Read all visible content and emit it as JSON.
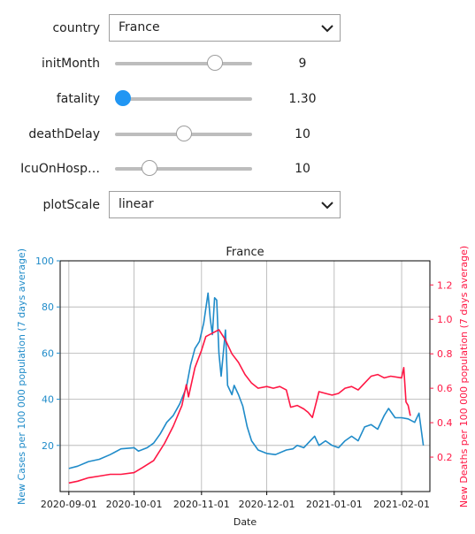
{
  "controls": {
    "country": {
      "label": "country",
      "value": "France"
    },
    "initMonth": {
      "label": "initMonth",
      "value": "9",
      "min": 1,
      "max": 12
    },
    "fatality": {
      "label": "fatality",
      "value": "1.30",
      "min": 1.2,
      "max": 3.0
    },
    "deathDelay": {
      "label": "deathDelay",
      "value": "10",
      "min": 0,
      "max": 20
    },
    "icuOnHosp": {
      "label": "IcuOnHosp…",
      "value": "10",
      "min": 0,
      "max": 40
    },
    "plotScale": {
      "label": "plotScale",
      "value": "linear"
    }
  },
  "colors": {
    "cases": "#1f8bc9",
    "deaths": "#ff1744",
    "accent": "#2196f3"
  },
  "chart_data": {
    "type": "line",
    "title": "France",
    "xlabel": "Date",
    "ylabel_left": "New Cases per 100 000 population (7 days average)",
    "ylabel_right": "New Deaths per 100 000 population (7 days average)",
    "x_ticks": [
      "2020-09-01",
      "2020-10-01",
      "2020-11-01",
      "2020-12-01",
      "2021-01-01",
      "2021-02-01"
    ],
    "y_left_ticks": [
      "20",
      "40",
      "60",
      "80",
      "100"
    ],
    "y_right_ticks": [
      "0.2",
      "0.4",
      "0.6",
      "0.8",
      "1.0",
      "1.2"
    ],
    "ylim_left": [
      0,
      100
    ],
    "ylim_right": [
      0,
      1.34
    ],
    "grid": true,
    "series": [
      {
        "axis": "left",
        "color": "#1f8bc9",
        "points": [
          [
            "2020-09-01",
            10
          ],
          [
            "2020-09-05",
            11
          ],
          [
            "2020-09-10",
            13
          ],
          [
            "2020-09-15",
            14
          ],
          [
            "2020-09-20",
            16
          ],
          [
            "2020-09-25",
            18.5
          ],
          [
            "2020-10-01",
            19
          ],
          [
            "2020-10-03",
            17.5
          ],
          [
            "2020-10-07",
            19
          ],
          [
            "2020-10-10",
            21
          ],
          [
            "2020-10-13",
            25
          ],
          [
            "2020-10-16",
            30
          ],
          [
            "2020-10-19",
            33
          ],
          [
            "2020-10-22",
            38
          ],
          [
            "2020-10-25",
            45
          ],
          [
            "2020-10-27",
            55
          ],
          [
            "2020-10-29",
            62
          ],
          [
            "2020-10-31",
            65
          ],
          [
            "2020-11-02",
            73
          ],
          [
            "2020-11-04",
            86
          ],
          [
            "2020-11-05",
            75
          ],
          [
            "2020-11-06",
            68
          ],
          [
            "2020-11-07",
            84
          ],
          [
            "2020-11-08",
            83
          ],
          [
            "2020-11-09",
            60
          ],
          [
            "2020-11-10",
            50
          ],
          [
            "2020-11-12",
            70
          ],
          [
            "2020-11-13",
            46
          ],
          [
            "2020-11-15",
            42
          ],
          [
            "2020-11-16",
            46
          ],
          [
            "2020-11-18",
            42
          ],
          [
            "2020-11-20",
            37
          ],
          [
            "2020-11-22",
            28
          ],
          [
            "2020-11-24",
            22
          ],
          [
            "2020-11-27",
            18
          ],
          [
            "2020-12-01",
            16.5
          ],
          [
            "2020-12-05",
            16
          ],
          [
            "2020-12-10",
            18
          ],
          [
            "2020-12-13",
            18.5
          ],
          [
            "2020-12-15",
            20
          ],
          [
            "2020-12-18",
            19
          ],
          [
            "2020-12-21",
            22
          ],
          [
            "2020-12-23",
            24
          ],
          [
            "2020-12-25",
            20
          ],
          [
            "2020-12-28",
            22
          ],
          [
            "2020-12-31",
            20
          ],
          [
            "2021-01-03",
            19
          ],
          [
            "2021-01-06",
            22
          ],
          [
            "2021-01-09",
            24
          ],
          [
            "2021-01-12",
            22
          ],
          [
            "2021-01-15",
            28
          ],
          [
            "2021-01-18",
            29
          ],
          [
            "2021-01-21",
            27
          ],
          [
            "2021-01-24",
            33
          ],
          [
            "2021-01-26",
            36
          ],
          [
            "2021-01-29",
            32
          ],
          [
            "2021-02-01",
            32
          ],
          [
            "2021-02-04",
            31.5
          ],
          [
            "2021-02-07",
            30
          ],
          [
            "2021-02-09",
            34
          ],
          [
            "2021-02-11",
            20
          ]
        ]
      },
      {
        "axis": "right",
        "color": "#ff1744",
        "points": [
          [
            "2020-09-01",
            0.05
          ],
          [
            "2020-09-05",
            0.06
          ],
          [
            "2020-09-10",
            0.08
          ],
          [
            "2020-09-15",
            0.09
          ],
          [
            "2020-09-20",
            0.1
          ],
          [
            "2020-09-25",
            0.1
          ],
          [
            "2020-10-01",
            0.11
          ],
          [
            "2020-10-05",
            0.14
          ],
          [
            "2020-10-10",
            0.18
          ],
          [
            "2020-10-15",
            0.28
          ],
          [
            "2020-10-19",
            0.38
          ],
          [
            "2020-10-23",
            0.5
          ],
          [
            "2020-10-25",
            0.62
          ],
          [
            "2020-10-26",
            0.55
          ],
          [
            "2020-10-29",
            0.72
          ],
          [
            "2020-11-01",
            0.82
          ],
          [
            "2020-11-03",
            0.9
          ],
          [
            "2020-11-06",
            0.92
          ],
          [
            "2020-11-09",
            0.94
          ],
          [
            "2020-11-12",
            0.88
          ],
          [
            "2020-11-15",
            0.8
          ],
          [
            "2020-11-18",
            0.75
          ],
          [
            "2020-11-21",
            0.68
          ],
          [
            "2020-11-24",
            0.63
          ],
          [
            "2020-11-27",
            0.6
          ],
          [
            "2020-12-01",
            0.61
          ],
          [
            "2020-12-04",
            0.6
          ],
          [
            "2020-12-07",
            0.61
          ],
          [
            "2020-12-10",
            0.59
          ],
          [
            "2020-12-12",
            0.49
          ],
          [
            "2020-12-15",
            0.5
          ],
          [
            "2020-12-18",
            0.48
          ],
          [
            "2020-12-20",
            0.46
          ],
          [
            "2020-12-22",
            0.43
          ],
          [
            "2020-12-25",
            0.58
          ],
          [
            "2020-12-28",
            0.57
          ],
          [
            "2020-12-31",
            0.56
          ],
          [
            "2021-01-03",
            0.57
          ],
          [
            "2021-01-06",
            0.6
          ],
          [
            "2021-01-09",
            0.61
          ],
          [
            "2021-01-12",
            0.59
          ],
          [
            "2021-01-15",
            0.63
          ],
          [
            "2021-01-18",
            0.67
          ],
          [
            "2021-01-21",
            0.68
          ],
          [
            "2021-01-24",
            0.66
          ],
          [
            "2021-01-27",
            0.67
          ],
          [
            "2021-02-01",
            0.66
          ],
          [
            "2021-02-02",
            0.72
          ],
          [
            "2021-02-03",
            0.52
          ],
          [
            "2021-02-04",
            0.5
          ],
          [
            "2021-02-05",
            0.44
          ]
        ]
      }
    ]
  }
}
